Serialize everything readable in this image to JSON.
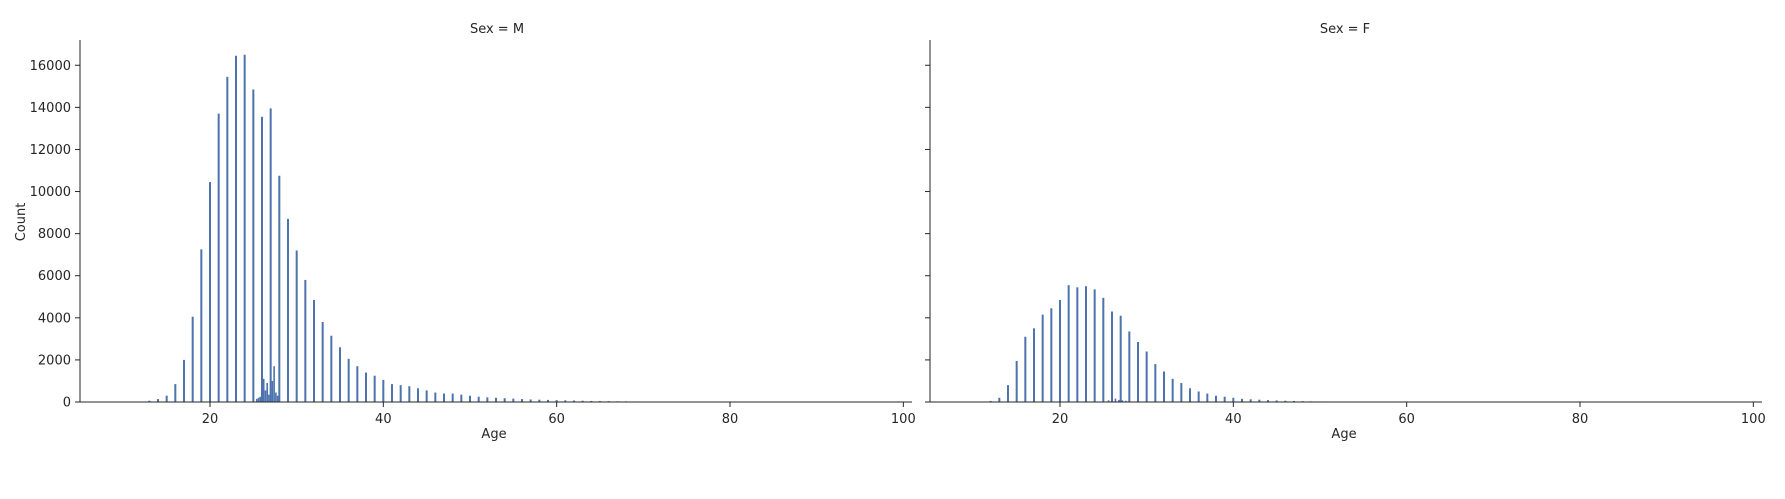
{
  "chart_data": [
    {
      "type": "bar",
      "title": "Sex = M",
      "xlabel": "Age",
      "ylabel": "Count",
      "xlim": [
        5,
        101
      ],
      "ylim": [
        0,
        17200
      ],
      "xticks": [
        20,
        40,
        60,
        80,
        100
      ],
      "yticks": [
        0,
        2000,
        4000,
        6000,
        8000,
        10000,
        12000,
        14000,
        16000
      ],
      "grid": false,
      "color": "#4c72b0",
      "x": [
        13,
        14,
        15,
        16,
        17,
        18,
        19,
        20,
        21,
        22,
        23,
        24,
        25,
        26,
        27,
        28,
        29,
        30,
        31,
        32,
        33,
        34,
        35,
        36,
        37,
        38,
        39,
        40,
        41,
        42,
        43,
        44,
        45,
        46,
        47,
        48,
        49,
        50,
        51,
        52,
        53,
        54,
        55,
        56,
        57,
        58,
        59,
        60,
        61,
        62,
        63,
        64,
        65,
        66,
        67,
        68,
        69,
        70,
        71,
        72
      ],
      "values": [
        60,
        140,
        300,
        850,
        2000,
        4050,
        7250,
        10450,
        13700,
        15450,
        16450,
        16500,
        14850,
        13550,
        13950,
        10750,
        8700,
        7200,
        5800,
        4850,
        3800,
        3150,
        2600,
        2050,
        1700,
        1400,
        1250,
        1050,
        850,
        800,
        750,
        650,
        550,
        450,
        400,
        400,
        350,
        300,
        250,
        220,
        200,
        180,
        160,
        140,
        120,
        110,
        100,
        90,
        80,
        70,
        60,
        50,
        45,
        40,
        35,
        30,
        25,
        20,
        15,
        10
      ],
      "extra_x": [
        25.4,
        25.6,
        25.8,
        26.0,
        26.2,
        26.4,
        26.6,
        26.8,
        27.0,
        27.2,
        27.4,
        27.6,
        27.8
      ],
      "extra_values": [
        150,
        200,
        250,
        400,
        1100,
        550,
        900,
        350,
        700,
        1000,
        1700,
        450,
        300
      ]
    },
    {
      "type": "bar",
      "title": "Sex = F",
      "xlabel": "Age",
      "ylabel": "",
      "xlim": [
        5,
        101
      ],
      "ylim": [
        0,
        17200
      ],
      "xticks": [
        20,
        40,
        60,
        80,
        100
      ],
      "yticks": [
        0,
        2000,
        4000,
        6000,
        8000,
        10000,
        12000,
        14000,
        16000
      ],
      "grid": false,
      "color": "#4c72b0",
      "x": [
        12,
        13,
        14,
        15,
        16,
        17,
        18,
        19,
        20,
        21,
        22,
        23,
        24,
        25,
        26,
        27,
        28,
        29,
        30,
        31,
        32,
        33,
        34,
        35,
        36,
        37,
        38,
        39,
        40,
        41,
        42,
        43,
        44,
        45,
        46,
        47,
        48,
        49,
        50,
        51,
        52,
        53
      ],
      "values": [
        50,
        200,
        800,
        1950,
        3100,
        3500,
        4150,
        4450,
        4850,
        5550,
        5450,
        5500,
        5350,
        4950,
        4300,
        4100,
        3350,
        2850,
        2400,
        1800,
        1450,
        1100,
        900,
        650,
        500,
        400,
        300,
        250,
        200,
        150,
        130,
        110,
        90,
        75,
        60,
        50,
        40,
        30,
        25,
        20,
        15,
        10
      ],
      "extra_x": [
        25.6,
        26.0,
        26.4,
        26.8,
        27.2,
        27.6
      ],
      "extra_values": [
        80,
        120,
        160,
        100,
        80,
        60
      ]
    }
  ]
}
